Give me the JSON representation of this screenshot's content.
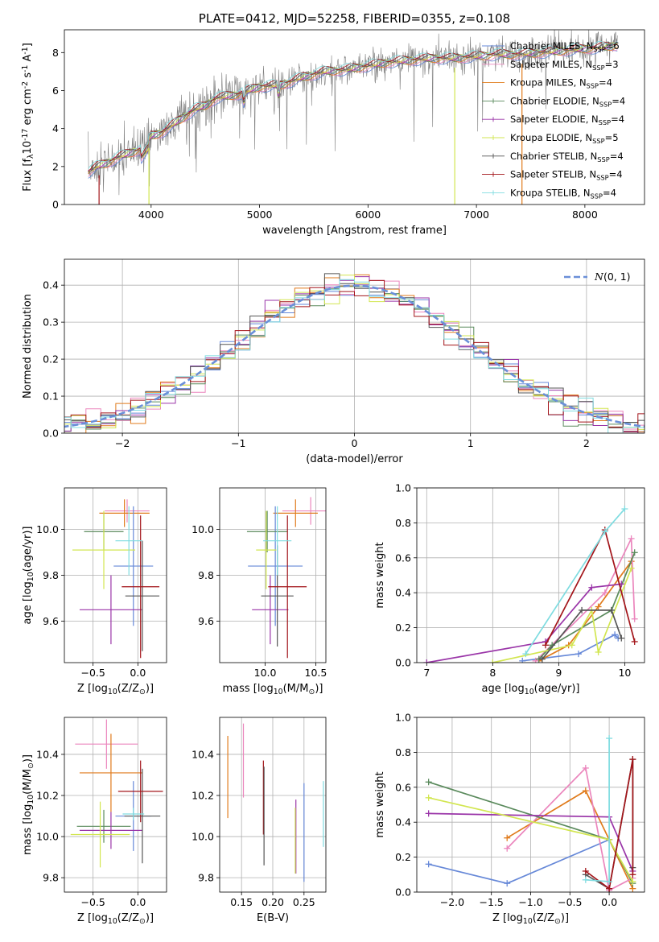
{
  "colors": {
    "chabrier_miles": "#6688d8",
    "salpeter_miles": "#eb86bd",
    "kroupa_miles": "#e07b1c",
    "chabrier_elodie": "#5a8a5c",
    "salpeter_elodie": "#9a35a8",
    "kroupa_elodie": "#d2e650",
    "chabrier_stelib": "#555555",
    "salpeter_stelib": "#a3151a",
    "kroupa_stelib": "#7fdce0",
    "data_spectrum": "#808080",
    "gaussian": "#6a8fd8",
    "grid": "#b0b0b0"
  },
  "chart_data": [
    {
      "id": "spectrum",
      "type": "line",
      "title": "PLATE=0412, MJD=52258, FIBERID=0355, z=0.108",
      "xlabel": "wavelength [Angstrom, rest frame]",
      "ylabel": "Flux [f$_\\lambda$10$^{-17}$ erg cm$^{-2}$ s$^{-1}$ A$^{-1}$]",
      "xlim": [
        3200,
        8550
      ],
      "ylim": [
        0,
        9.2
      ],
      "xticks": [
        4000,
        5000,
        6000,
        7000,
        8000
      ],
      "yticks": [
        0,
        2,
        4,
        6,
        8
      ],
      "grid": false,
      "legend_position": "top-right",
      "continuum_x": [
        3420,
        3500,
        3600,
        3700,
        3800,
        3900,
        4000,
        4100,
        4200,
        4300,
        4400,
        4500,
        4600,
        4800,
        5000,
        5200,
        5400,
        5600,
        5800,
        6000,
        6200,
        6400,
        6600,
        6800,
        7000,
        7200,
        7400,
        7600,
        7800,
        8000,
        8200,
        8300
      ],
      "continuum_y": [
        1.7,
        2.0,
        2.2,
        2.5,
        2.7,
        2.9,
        3.6,
        3.8,
        4.2,
        4.6,
        5.0,
        5.2,
        5.6,
        5.8,
        6.2,
        6.3,
        6.7,
        7.0,
        7.1,
        7.3,
        7.5,
        7.6,
        7.7,
        7.7,
        7.8,
        7.9,
        7.9,
        8.0,
        8.1,
        8.2,
        8.3,
        8.4
      ],
      "series": [
        {
          "name": "Chabrier MILES, N$_{SSP}$=6",
          "key": "chabrier_miles"
        },
        {
          "name": "Salpeter MILES, N$_{SSP}$=3",
          "key": "salpeter_miles"
        },
        {
          "name": "Kroupa MILES, N$_{SSP}$=4",
          "key": "kroupa_miles"
        },
        {
          "name": "Chabrier ELODIE, N$_{SSP}$=4",
          "key": "chabrier_elodie"
        },
        {
          "name": "Salpeter ELODIE, N$_{SSP}$=4",
          "key": "salpeter_elodie"
        },
        {
          "name": "Kroupa ELODIE, N$_{SSP}$=5",
          "key": "kroupa_elodie"
        },
        {
          "name": "Chabrier STELIB, N$_{SSP}$=4",
          "key": "chabrier_stelib"
        },
        {
          "name": "Salpeter STELIB, N$_{SSP}$=4",
          "key": "salpeter_stelib"
        },
        {
          "name": "Kroupa STELIB, N$_{SSP}$=4",
          "key": "kroupa_stelib"
        }
      ]
    },
    {
      "id": "residuals",
      "type": "histogram",
      "xlabel": "(data-model)/error",
      "ylabel": "Normed distribution",
      "xlim": [
        -2.5,
        2.5
      ],
      "ylim": [
        0,
        0.47
      ],
      "xticks": [
        -2,
        -1,
        0,
        1,
        2
      ],
      "yticks": [
        0.0,
        0.1,
        0.2,
        0.3,
        0.4
      ],
      "grid": true,
      "legend_position": "top-right",
      "legend": "$\\mathcal{N}(0,1)$",
      "bins": 42
    },
    {
      "id": "age_vs_Z",
      "type": "errorbar",
      "xlabel": "Z [log$_{10}$(Z/Z$_\\odot$)]",
      "ylabel": "age  [log$_{10}$(age/yr)]",
      "xlim": [
        -0.82,
        0.32
      ],
      "ylim": [
        9.42,
        10.18
      ],
      "xticks": [
        -0.5,
        0.0
      ],
      "yticks": [
        9.6,
        9.8,
        10.0
      ],
      "grid": true,
      "points": [
        {
          "key": "salpeter_miles",
          "x": -0.12,
          "xerr": 0.25,
          "y": 10.08,
          "yerr": 0.05
        },
        {
          "key": "kroupa_miles",
          "x": -0.15,
          "xerr": 0.28,
          "y": 10.07,
          "yerr": 0.06
        },
        {
          "key": "chabrier_miles",
          "x": -0.05,
          "xerr": 0.22,
          "y": 9.84,
          "yerr": 0.26
        },
        {
          "key": "chabrier_elodie",
          "x": -0.38,
          "xerr": 0.22,
          "y": 9.99,
          "yerr": 0.08
        },
        {
          "key": "salpeter_elodie",
          "x": -0.3,
          "xerr": 0.35,
          "y": 9.65,
          "yerr": 0.15
        },
        {
          "key": "kroupa_elodie",
          "x": -0.38,
          "xerr": 0.35,
          "y": 9.91,
          "yerr": 0.17
        },
        {
          "key": "chabrier_stelib",
          "x": 0.05,
          "xerr": 0.19,
          "y": 9.71,
          "yerr": 0.24
        },
        {
          "key": "salpeter_stelib",
          "x": 0.03,
          "xerr": 0.21,
          "y": 9.75,
          "yerr": 0.31
        },
        {
          "key": "kroupa_stelib",
          "x": -0.1,
          "xerr": 0.15,
          "y": 9.95,
          "yerr": 0.15
        }
      ]
    },
    {
      "id": "age_vs_mass",
      "type": "errorbar",
      "xlabel": "mass [log$_{10}$(M/M$_\\odot$)]",
      "ylabel": "",
      "xlim": [
        9.55,
        10.6
      ],
      "ylim": [
        9.42,
        10.18
      ],
      "xticks": [
        10.0,
        10.5
      ],
      "yticks": [
        9.6,
        9.8,
        10.0
      ],
      "grid": true,
      "points": [
        {
          "key": "salpeter_miles",
          "x": 10.45,
          "xerr": 0.28,
          "y": 10.08,
          "yerr": 0.06
        },
        {
          "key": "kroupa_miles",
          "x": 10.3,
          "xerr": 0.22,
          "y": 10.07,
          "yerr": 0.06
        },
        {
          "key": "chabrier_miles",
          "x": 10.1,
          "xerr": 0.27,
          "y": 9.84,
          "yerr": 0.26
        },
        {
          "key": "chabrier_elodie",
          "x": 10.02,
          "xerr": 0.2,
          "y": 9.99,
          "yerr": 0.09
        },
        {
          "key": "salpeter_elodie",
          "x": 10.05,
          "xerr": 0.18,
          "y": 9.65,
          "yerr": 0.15
        },
        {
          "key": "kroupa_elodie",
          "x": 10.01,
          "xerr": 0.1,
          "y": 9.91,
          "yerr": 0.17
        },
        {
          "key": "chabrier_stelib",
          "x": 10.12,
          "xerr": 0.16,
          "y": 9.71,
          "yerr": 0.22
        },
        {
          "key": "salpeter_stelib",
          "x": 10.22,
          "xerr": 0.19,
          "y": 9.75,
          "yerr": 0.31
        },
        {
          "key": "kroupa_stelib",
          "x": 10.12,
          "xerr": 0.14,
          "y": 9.95,
          "yerr": 0.15
        }
      ]
    },
    {
      "id": "mass_weight_vs_age",
      "type": "line",
      "xlabel": "age  [log$_{10}$(age/yr)]",
      "ylabel": "mass weight",
      "xlim": [
        6.85,
        10.3
      ],
      "ylim": [
        0,
        1.0
      ],
      "xticks": [
        7,
        8,
        9,
        10
      ],
      "yticks": [
        0.0,
        0.2,
        0.4,
        0.6,
        0.8,
        1.0
      ],
      "grid": true,
      "series": [
        {
          "key": "chabrier_miles",
          "x": [
            8.45,
            9.3,
            9.85,
            9.9
          ],
          "y": [
            0.01,
            0.05,
            0.16,
            0.14
          ]
        },
        {
          "key": "kroupa_miles",
          "x": [
            8.7,
            9.15,
            9.6,
            10.1
          ],
          "y": [
            0.01,
            0.1,
            0.32,
            0.58
          ]
        },
        {
          "key": "salpeter_miles",
          "x": [
            8.65,
            9.7,
            10.1,
            10.15
          ],
          "y": [
            0.01,
            0.4,
            0.71,
            0.25
          ]
        },
        {
          "key": "chabrier_elodie",
          "x": [
            8.7,
            8.9,
            9.8,
            10.15
          ],
          "y": [
            0.02,
            0.1,
            0.3,
            0.63
          ]
        },
        {
          "key": "salpeter_elodie",
          "x": [
            7.0,
            8.8,
            9.5,
            9.95
          ],
          "y": [
            0.0,
            0.12,
            0.43,
            0.45
          ]
        },
        {
          "key": "kroupa_elodie",
          "x": [
            8.0,
            9.2,
            9.5,
            9.6,
            10.1
          ],
          "y": [
            0.0,
            0.1,
            0.3,
            0.06,
            0.54
          ]
        },
        {
          "key": "chabrier_stelib",
          "x": [
            8.75,
            9.35,
            9.8,
            9.95
          ],
          "y": [
            0.02,
            0.3,
            0.3,
            0.14
          ]
        },
        {
          "key": "salpeter_stelib",
          "x": [
            8.8,
            9.7,
            10.15
          ],
          "y": [
            0.1,
            0.76,
            0.12
          ]
        },
        {
          "key": "kroupa_stelib",
          "x": [
            8.5,
            9.7,
            10.0
          ],
          "y": [
            0.05,
            0.75,
            0.88
          ]
        }
      ]
    },
    {
      "id": "mass_vs_Z",
      "type": "errorbar",
      "xlabel": "Z [log$_{10}$(Z/Z$_\\odot$)]",
      "ylabel": "mass [log$_{10}$(M/M$_\\odot$)]",
      "xlim": [
        -0.82,
        0.32
      ],
      "ylim": [
        9.73,
        10.58
      ],
      "xticks": [
        -0.5,
        0.0
      ],
      "yticks": [
        9.8,
        10.0,
        10.2,
        10.4
      ],
      "grid": true,
      "points": [
        {
          "key": "salpeter_miles",
          "x": -0.35,
          "xerr": 0.35,
          "y": 10.45,
          "yerr": 0.12
        },
        {
          "key": "kroupa_miles",
          "x": -0.3,
          "xerr": 0.35,
          "y": 10.31,
          "yerr": 0.19
        },
        {
          "key": "chabrier_miles",
          "x": -0.05,
          "xerr": 0.2,
          "y": 10.1,
          "yerr": 0.17
        },
        {
          "key": "chabrier_elodie",
          "x": -0.38,
          "xerr": 0.3,
          "y": 10.05,
          "yerr": 0.08
        },
        {
          "key": "salpeter_elodie",
          "x": -0.3,
          "xerr": 0.35,
          "y": 10.03,
          "yerr": 0.09
        },
        {
          "key": "kroupa_elodie",
          "x": -0.42,
          "xerr": 0.33,
          "y": 10.01,
          "yerr": 0.16
        },
        {
          "key": "chabrier_stelib",
          "x": 0.05,
          "xerr": 0.2,
          "y": 10.1,
          "yerr": 0.23
        },
        {
          "key": "salpeter_stelib",
          "x": 0.03,
          "xerr": 0.25,
          "y": 10.22,
          "yerr": 0.15
        },
        {
          "key": "kroupa_stelib",
          "x": -0.05,
          "xerr": 0.12,
          "y": 10.11,
          "yerr": 0.03
        }
      ]
    },
    {
      "id": "mass_vs_ebv",
      "type": "errorbar",
      "xlabel": "E(B-V)",
      "ylabel": "",
      "xlim": [
        0.115,
        0.285
      ],
      "ylim": [
        9.73,
        10.58
      ],
      "xticks": [
        0.15,
        0.2,
        0.25
      ],
      "xticklabels": [
        "0.15",
        "0.20",
        "0.25"
      ],
      "yticks": [
        9.8,
        10.0,
        10.2,
        10.4
      ],
      "grid": true,
      "points": [
        {
          "key": "kroupa_miles",
          "x": 0.128,
          "y": 10.29,
          "yerr": 0.2
        },
        {
          "key": "salpeter_miles",
          "x": 0.153,
          "y": 10.37,
          "yerr": 0.18
        },
        {
          "key": "salpeter_stelib",
          "x": 0.185,
          "y": 10.19,
          "yerr": 0.18
        },
        {
          "key": "chabrier_stelib",
          "x": 0.186,
          "y": 10.1,
          "yerr": 0.24
        },
        {
          "key": "salpeter_elodie",
          "x": 0.237,
          "y": 10.0,
          "yerr": 0.18
        },
        {
          "key": "kroupa_elodie",
          "x": 0.236,
          "y": 9.98,
          "yerr": 0.16
        },
        {
          "key": "chabrier_miles",
          "x": 0.25,
          "y": 10.02,
          "yerr": 0.24
        },
        {
          "key": "kroupa_stelib",
          "x": 0.281,
          "y": 10.11,
          "yerr": 0.16
        }
      ]
    },
    {
      "id": "mass_weight_vs_Z",
      "type": "line",
      "xlabel": "Z [log$_{10}$(Z/Z$_\\odot$)]",
      "ylabel": "mass weight",
      "xlim": [
        -2.45,
        0.45
      ],
      "ylim": [
        0,
        1.0
      ],
      "xticks": [
        -2.0,
        -1.5,
        -1.0,
        -0.5,
        0.0
      ],
      "yticks": [
        0.0,
        0.2,
        0.4,
        0.6,
        0.8,
        1.0
      ],
      "grid": true,
      "series": [
        {
          "key": "chabrier_miles",
          "x": [
            -2.3,
            -1.3,
            0.0
          ],
          "y": [
            0.16,
            0.05,
            0.3
          ]
        },
        {
          "key": "kroupa_miles",
          "x": [
            -1.3,
            -0.3,
            0.0,
            0.3
          ],
          "y": [
            0.31,
            0.58,
            0.3,
            0.02
          ]
        },
        {
          "key": "salpeter_miles",
          "x": [
            -1.3,
            -0.3,
            0.0,
            0.3
          ],
          "y": [
            0.25,
            0.71,
            0.01,
            0.08
          ]
        },
        {
          "key": "chabrier_elodie",
          "x": [
            -2.3,
            0.0,
            0.3
          ],
          "y": [
            0.63,
            0.3,
            0.05
          ]
        },
        {
          "key": "salpeter_elodie",
          "x": [
            -2.3,
            0.0,
            0.3
          ],
          "y": [
            0.45,
            0.43,
            0.12
          ]
        },
        {
          "key": "kroupa_elodie",
          "x": [
            -2.3,
            0.0,
            0.3
          ],
          "y": [
            0.54,
            0.3,
            0.06
          ]
        },
        {
          "key": "chabrier_stelib",
          "x": [
            -0.3,
            0.0,
            0.3,
            0.3
          ],
          "y": [
            0.1,
            0.02,
            0.76,
            0.14
          ]
        },
        {
          "key": "salpeter_stelib",
          "x": [
            -0.3,
            0.0,
            0.3,
            0.3
          ],
          "y": [
            0.12,
            0.02,
            0.76,
            0.1
          ]
        },
        {
          "key": "kroupa_stelib",
          "x": [
            -0.3,
            0.0,
            0.0
          ],
          "y": [
            0.07,
            0.06,
            0.88
          ]
        }
      ]
    }
  ]
}
